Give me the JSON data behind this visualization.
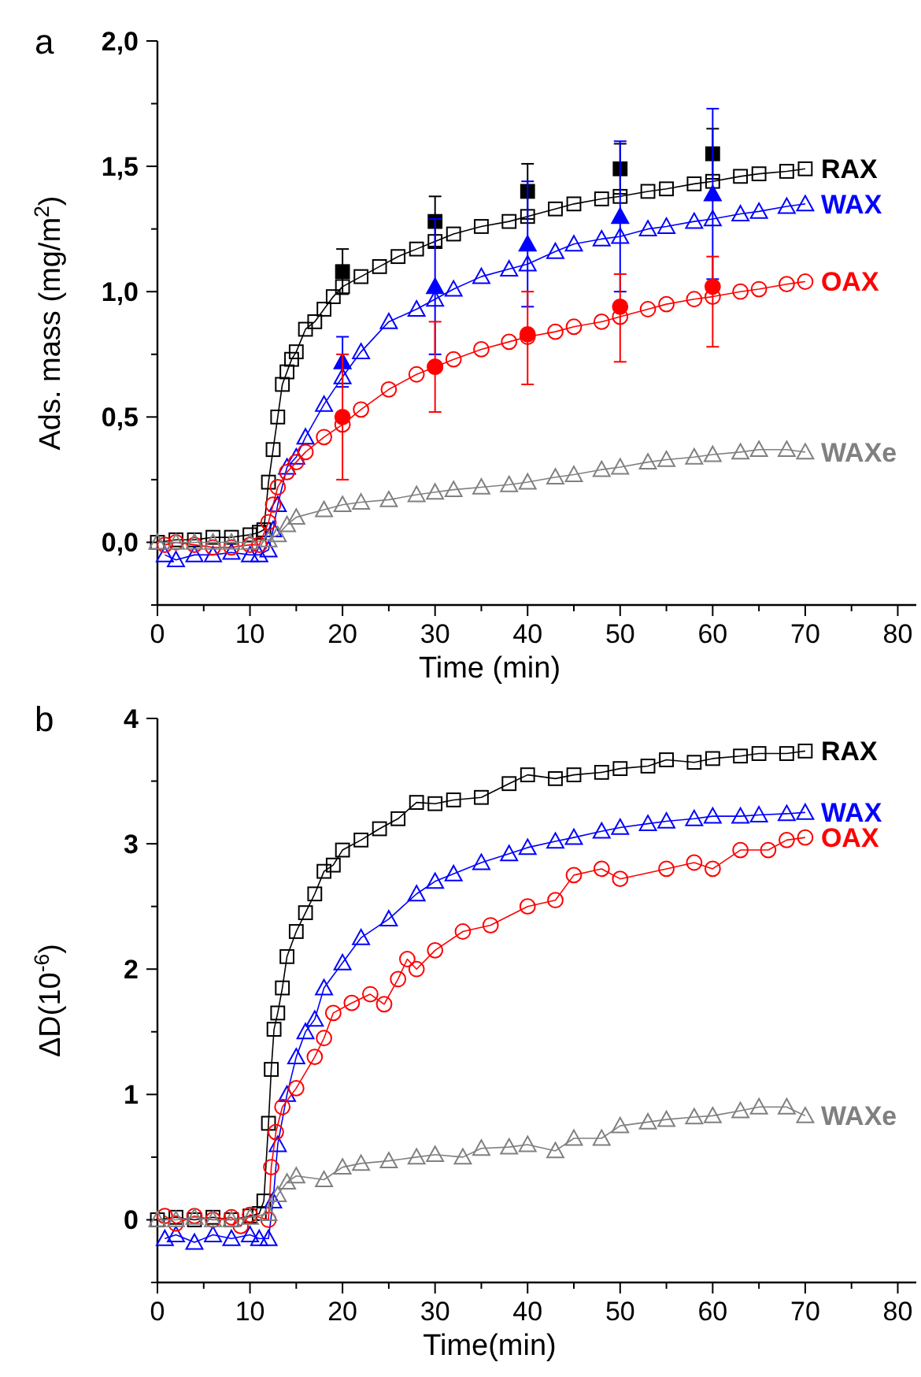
{
  "chart_data": [
    {
      "type": "line",
      "title": "a",
      "xlabel": "Time (min)",
      "ylabel": "Ads. mass (mg/m$^{2}$)",
      "xlim": [
        0,
        82
      ],
      "ylim": [
        -0.25,
        2.0
      ],
      "xticks": [
        0,
        {
          "value": 5,
          "label": null
        },
        10,
        {
          "value": 15,
          "label": null
        },
        20,
        {
          "value": 25,
          "label": null
        },
        30,
        {
          "value": 35,
          "label": null
        },
        40,
        {
          "value": 45,
          "label": null
        },
        50,
        {
          "value": 55,
          "label": null
        },
        60,
        {
          "value": 65,
          "label": null
        },
        70,
        {
          "value": 75,
          "label": null
        },
        80
      ],
      "yticks": [
        {
          "value": -0.25,
          "label": null
        },
        {
          "value": 0,
          "label": "0,0"
        },
        {
          "value": 0.25,
          "label": null
        },
        {
          "value": 0.5,
          "label": "0,5"
        },
        {
          "value": 0.75,
          "label": null
        },
        {
          "value": 1,
          "label": "1,0"
        },
        {
          "value": 1.25,
          "label": null
        },
        {
          "value": 1.5,
          "label": "1,5"
        },
        {
          "value": 1.75,
          "label": null
        },
        {
          "value": 2,
          "label": "2,0"
        }
      ],
      "grid": false,
      "series": [
        {
          "name": "RAX",
          "color": "#000000",
          "marker": "square",
          "x": [
            0,
            2,
            4,
            6,
            8,
            10,
            11,
            11.5,
            12,
            12.5,
            13,
            13.5,
            14,
            14.5,
            15,
            16,
            17,
            18,
            19,
            20,
            22,
            24,
            26,
            28,
            30,
            32,
            35,
            38,
            40,
            43,
            45,
            48,
            50,
            53,
            55,
            58,
            60,
            63,
            65,
            68,
            70
          ],
          "values": [
            0.0,
            0.01,
            0.01,
            0.02,
            0.02,
            0.03,
            0.04,
            0.05,
            0.24,
            0.37,
            0.5,
            0.63,
            0.68,
            0.73,
            0.76,
            0.85,
            0.88,
            0.93,
            0.98,
            1.02,
            1.06,
            1.1,
            1.14,
            1.17,
            1.2,
            1.23,
            1.26,
            1.28,
            1.3,
            1.33,
            1.35,
            1.37,
            1.38,
            1.4,
            1.41,
            1.43,
            1.44,
            1.46,
            1.47,
            1.48,
            1.49
          ]
        },
        {
          "name": "WAX",
          "color": "#0000ff",
          "marker": "triangle",
          "x": [
            0.8,
            2,
            4,
            6,
            8,
            10,
            11,
            12,
            12.5,
            13,
            14,
            15,
            16,
            18,
            20,
            22,
            25,
            28,
            30,
            32,
            35,
            38,
            40,
            43,
            45,
            48,
            50,
            53,
            55,
            58,
            60,
            63,
            65,
            68,
            70
          ],
          "values": [
            -0.05,
            -0.07,
            -0.05,
            -0.05,
            -0.04,
            -0.05,
            -0.05,
            -0.03,
            0.05,
            0.15,
            0.3,
            0.34,
            0.42,
            0.55,
            0.66,
            0.76,
            0.88,
            0.93,
            0.97,
            1.01,
            1.06,
            1.09,
            1.11,
            1.16,
            1.19,
            1.21,
            1.22,
            1.25,
            1.26,
            1.28,
            1.29,
            1.31,
            1.32,
            1.34,
            1.35
          ]
        },
        {
          "name": "OAX",
          "color": "#ff0000",
          "marker": "circle",
          "x": [
            0.8,
            2,
            4,
            6,
            8,
            10,
            11,
            12,
            12.5,
            13,
            14,
            15,
            16,
            18,
            20,
            22,
            25,
            28,
            30,
            32,
            35,
            38,
            40,
            43,
            45,
            48,
            50,
            53,
            55,
            58,
            60,
            63,
            65,
            68,
            70
          ],
          "values": [
            -0.01,
            0.0,
            -0.01,
            -0.02,
            -0.02,
            -0.01,
            -0.01,
            0.08,
            0.15,
            0.22,
            0.28,
            0.32,
            0.36,
            0.42,
            0.47,
            0.53,
            0.61,
            0.67,
            0.7,
            0.73,
            0.77,
            0.8,
            0.82,
            0.84,
            0.86,
            0.88,
            0.9,
            0.93,
            0.95,
            0.97,
            0.98,
            1.0,
            1.01,
            1.03,
            1.04
          ]
        },
        {
          "name": "WAXe",
          "color": "#808080",
          "marker": "triangle",
          "x": [
            0,
            2,
            4,
            6,
            8,
            10,
            12,
            13,
            14,
            15,
            18,
            20,
            22,
            25,
            28,
            30,
            32,
            35,
            38,
            40,
            43,
            45,
            48,
            50,
            53,
            55,
            58,
            60,
            63,
            65,
            68,
            70
          ],
          "values": [
            0.0,
            0.0,
            0.0,
            0.0,
            0.0,
            0.0,
            0.01,
            0.03,
            0.07,
            0.1,
            0.13,
            0.15,
            0.16,
            0.17,
            0.19,
            0.2,
            0.21,
            0.22,
            0.23,
            0.24,
            0.26,
            0.27,
            0.29,
            0.3,
            0.32,
            0.33,
            0.34,
            0.35,
            0.36,
            0.37,
            0.37,
            0.36
          ]
        },
        {
          "type": "scatter",
          "color": "#000000",
          "marker": "square",
          "x": [
            20,
            30,
            40,
            50,
            60
          ],
          "values": [
            1.08,
            1.28,
            1.4,
            1.49,
            1.55
          ],
          "errors": [
            0.09,
            0.1,
            0.11,
            0.1,
            0.1
          ]
        },
        {
          "type": "scatter",
          "color": "#0000ff",
          "marker": "triangle",
          "x": [
            20,
            30,
            40,
            50,
            60
          ],
          "values": [
            0.72,
            1.02,
            1.19,
            1.3,
            1.39
          ],
          "errors": [
            0.1,
            0.27,
            0.25,
            0.3,
            0.34
          ]
        },
        {
          "type": "scatter",
          "color": "#ff0000",
          "marker": "circle",
          "x": [
            20,
            30,
            40,
            50,
            60
          ],
          "values": [
            0.5,
            0.7,
            0.83,
            0.94,
            1.02
          ],
          "errors": [
            0.25,
            0.18,
            [
              0.63,
              1.0
            ],
            [
              0.72,
              1.07
            ],
            [
              0.78,
              1.14
            ]
          ]
        }
      ]
    },
    {
      "type": "line",
      "title": "b",
      "xlabel": "Time(min)",
      "ylabel": "ΔD(10$^{-6}$)",
      "xlim": [
        0,
        82
      ],
      "ylim": [
        -0.5,
        4
      ],
      "xticks": [
        0,
        {
          "value": 5,
          "label": null
        },
        10,
        {
          "value": 15,
          "label": null
        },
        20,
        {
          "value": 25,
          "label": null
        },
        30,
        {
          "value": 35,
          "label": null
        },
        40,
        {
          "value": 45,
          "label": null
        },
        50,
        {
          "value": 55,
          "label": null
        },
        60,
        {
          "value": 65,
          "label": null
        },
        70,
        {
          "value": 75,
          "label": null
        },
        80
      ],
      "yticks": [
        {
          "value": -0.5,
          "label": null
        },
        0,
        {
          "value": 0.5,
          "label": null
        },
        1,
        {
          "value": 1.5,
          "label": null
        },
        2,
        {
          "value": 2.5,
          "label": null
        },
        3,
        {
          "value": 3.5,
          "label": null
        },
        4
      ],
      "grid": false,
      "series": [
        {
          "name": "RAX",
          "color": "#000000",
          "marker": "square",
          "x": [
            0,
            2,
            4,
            6,
            8,
            10,
            11,
            11.5,
            12,
            12.3,
            12.6,
            13,
            13.5,
            14,
            15,
            16,
            17,
            18,
            19,
            20,
            22,
            24,
            26,
            28,
            30,
            32,
            35,
            38,
            40,
            43,
            45,
            48,
            50,
            53,
            55,
            58,
            60,
            63,
            65,
            68,
            70
          ],
          "values": [
            0.0,
            0.02,
            0.0,
            0.02,
            0.0,
            0.03,
            0.05,
            0.15,
            0.77,
            1.2,
            1.52,
            1.65,
            1.85,
            2.1,
            2.3,
            2.45,
            2.6,
            2.78,
            2.83,
            2.95,
            3.03,
            3.12,
            3.2,
            3.33,
            3.32,
            3.35,
            3.37,
            3.48,
            3.55,
            3.52,
            3.55,
            3.57,
            3.6,
            3.62,
            3.67,
            3.65,
            3.68,
            3.7,
            3.72,
            3.72,
            3.74
          ]
        },
        {
          "name": "WAX",
          "color": "#0000ff",
          "marker": "triangle",
          "x": [
            0.8,
            2,
            4,
            6,
            8,
            10,
            11,
            12,
            12.5,
            13,
            14,
            15,
            16,
            17,
            18,
            20,
            22,
            25,
            28,
            30,
            32,
            35,
            38,
            40,
            43,
            45,
            48,
            50,
            53,
            55,
            58,
            60,
            63,
            65,
            68,
            70
          ],
          "values": [
            -0.15,
            -0.12,
            -0.18,
            -0.12,
            -0.15,
            -0.12,
            -0.15,
            -0.15,
            0.15,
            0.6,
            1.0,
            1.3,
            1.5,
            1.6,
            1.85,
            2.05,
            2.25,
            2.4,
            2.6,
            2.7,
            2.76,
            2.85,
            2.92,
            2.97,
            3.02,
            3.05,
            3.1,
            3.13,
            3.16,
            3.18,
            3.2,
            3.22,
            3.22,
            3.23,
            3.24,
            3.25
          ]
        },
        {
          "name": "OAX",
          "color": "#ff0000",
          "marker": "circle",
          "x": [
            0.8,
            2,
            4,
            6,
            8,
            9,
            10,
            12,
            12.3,
            12.8,
            13.5,
            15,
            17,
            18,
            19,
            21,
            23,
            24.5,
            26,
            27,
            28,
            30,
            33,
            36,
            40,
            43,
            45,
            48,
            50,
            55,
            58,
            60,
            63,
            66,
            68,
            70
          ],
          "values": [
            0.03,
            -0.03,
            0.03,
            0.0,
            0.02,
            -0.05,
            0.04,
            0.0,
            0.42,
            0.7,
            0.9,
            1.05,
            1.3,
            1.45,
            1.65,
            1.73,
            1.8,
            1.72,
            1.92,
            2.08,
            2.0,
            2.15,
            2.3,
            2.35,
            2.5,
            2.55,
            2.75,
            2.8,
            2.72,
            2.8,
            2.85,
            2.8,
            2.95,
            2.95,
            3.03,
            3.05
          ]
        },
        {
          "name": "WAXe",
          "color": "#808080",
          "marker": "triangle",
          "x": [
            0,
            2,
            4,
            6,
            8,
            10,
            12,
            13,
            14,
            15,
            18,
            20,
            22,
            25,
            28,
            30,
            33,
            35,
            38,
            40,
            43,
            45,
            48,
            50,
            53,
            55,
            58,
            60,
            63,
            65,
            68,
            70
          ],
          "values": [
            0.0,
            0.0,
            0.02,
            0.0,
            0.0,
            0.02,
            0.05,
            0.2,
            0.3,
            0.35,
            0.32,
            0.42,
            0.45,
            0.47,
            0.5,
            0.52,
            0.5,
            0.57,
            0.58,
            0.6,
            0.55,
            0.65,
            0.65,
            0.75,
            0.78,
            0.8,
            0.82,
            0.83,
            0.87,
            0.9,
            0.9,
            0.83
          ]
        }
      ]
    }
  ]
}
